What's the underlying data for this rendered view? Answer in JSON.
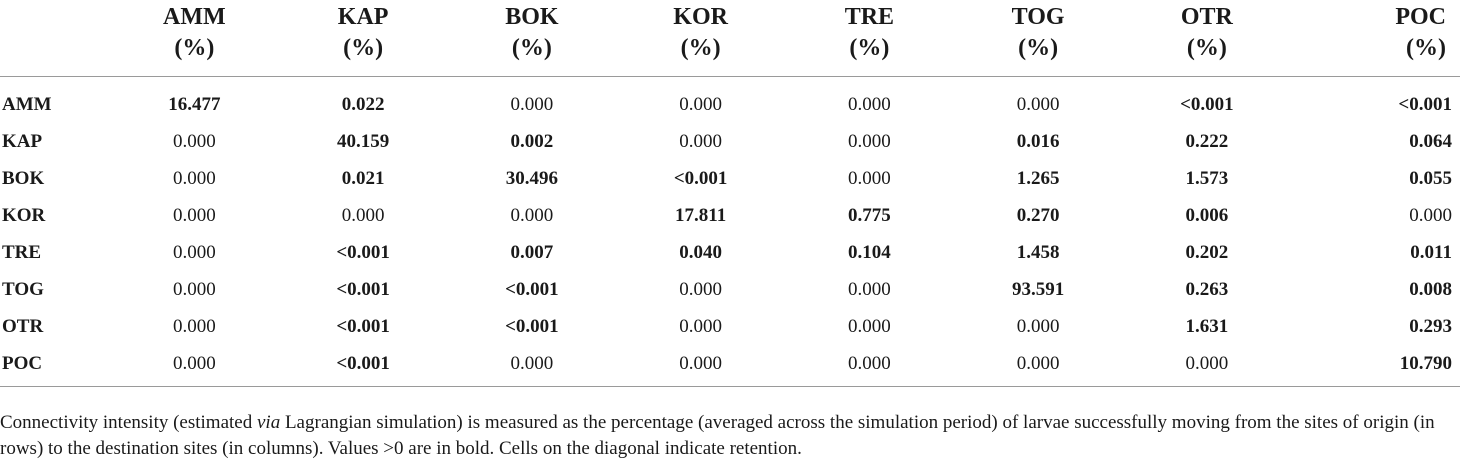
{
  "table": {
    "columns": [
      {
        "code": "AMM",
        "unit": "(%)"
      },
      {
        "code": "KAP",
        "unit": "(%)"
      },
      {
        "code": "BOK",
        "unit": "(%)"
      },
      {
        "code": "KOR",
        "unit": "(%)"
      },
      {
        "code": "TRE",
        "unit": "(%)"
      },
      {
        "code": "TOG",
        "unit": "(%)"
      },
      {
        "code": "OTR",
        "unit": "(%)"
      },
      {
        "code": "POC",
        "unit": "(%)"
      }
    ],
    "rows": [
      {
        "label": "AMM",
        "cells": [
          "16.477",
          "0.022",
          "0.000",
          "0.000",
          "0.000",
          "0.000",
          "<0.001",
          "<0.001"
        ],
        "bold": [
          1,
          1,
          0,
          0,
          0,
          0,
          1,
          1
        ]
      },
      {
        "label": "KAP",
        "cells": [
          "0.000",
          "40.159",
          "0.002",
          "0.000",
          "0.000",
          "0.016",
          "0.222",
          "0.064"
        ],
        "bold": [
          0,
          1,
          1,
          0,
          0,
          1,
          1,
          1
        ]
      },
      {
        "label": "BOK",
        "cells": [
          "0.000",
          "0.021",
          "30.496",
          "<0.001",
          "0.000",
          "1.265",
          "1.573",
          "0.055"
        ],
        "bold": [
          0,
          1,
          1,
          1,
          0,
          1,
          1,
          1
        ]
      },
      {
        "label": "KOR",
        "cells": [
          "0.000",
          "0.000",
          "0.000",
          "17.811",
          "0.775",
          "0.270",
          "0.006",
          "0.000"
        ],
        "bold": [
          0,
          0,
          0,
          1,
          1,
          1,
          1,
          0
        ]
      },
      {
        "label": "TRE",
        "cells": [
          "0.000",
          "<0.001",
          "0.007",
          "0.040",
          "0.104",
          "1.458",
          "0.202",
          "0.011"
        ],
        "bold": [
          0,
          1,
          1,
          1,
          1,
          1,
          1,
          1
        ]
      },
      {
        "label": "TOG",
        "cells": [
          "0.000",
          "<0.001",
          "<0.001",
          "0.000",
          "0.000",
          "93.591",
          "0.263",
          "0.008"
        ],
        "bold": [
          0,
          1,
          1,
          0,
          0,
          1,
          1,
          1
        ]
      },
      {
        "label": "OTR",
        "cells": [
          "0.000",
          "<0.001",
          "<0.001",
          "0.000",
          "0.000",
          "0.000",
          "1.631",
          "0.293"
        ],
        "bold": [
          0,
          1,
          1,
          0,
          0,
          0,
          1,
          1
        ]
      },
      {
        "label": "POC",
        "cells": [
          "0.000",
          "<0.001",
          "0.000",
          "0.000",
          "0.000",
          "0.000",
          "0.000",
          "10.790"
        ],
        "bold": [
          0,
          1,
          0,
          0,
          0,
          0,
          0,
          1
        ]
      }
    ]
  },
  "footnote": {
    "part1": "Connectivity intensity (estimated ",
    "italic": "via",
    "part2": " Lagrangian simulation) is measured as the percentage (averaged across the simulation period) of larvae successfully moving from the sites of origin (in rows) to the destination sites (in columns). Values >0 are in bold. Cells on the diagonal indicate retention."
  }
}
